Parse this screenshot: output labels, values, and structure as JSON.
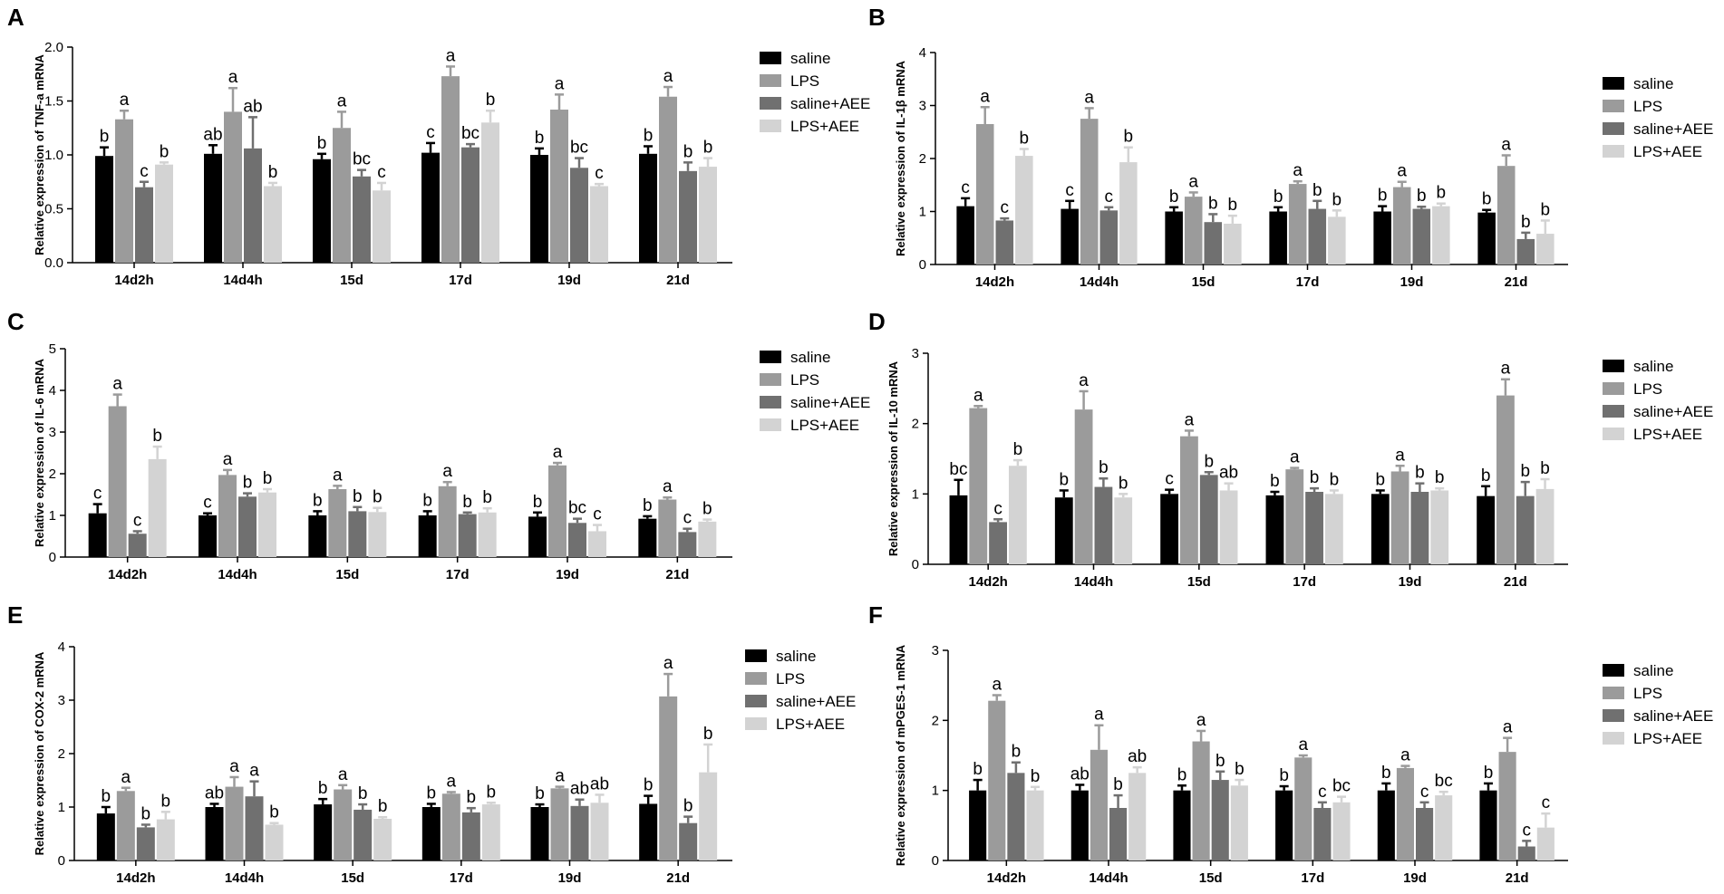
{
  "colors": {
    "saline": "#000000",
    "LPS": "#9b9b9b",
    "saline+AEE": "#707070",
    "LPS+AEE": "#d3d3d3"
  },
  "chart_data": [
    {
      "type": "bar",
      "panel": "A",
      "ylabel": "Relative expression of TNF-a mRNA",
      "ylim": [
        0,
        2.0
      ],
      "yticks": [
        "0.0",
        "0.5",
        "1.0",
        "1.5",
        "2.0"
      ],
      "categories": [
        "14d2h",
        "14d4h",
        "15d",
        "17d",
        "19d",
        "21d"
      ],
      "series": [
        {
          "name": "saline",
          "values": [
            0.99,
            1.01,
            0.96,
            1.02,
            1.0,
            1.01
          ],
          "errors": [
            0.08,
            0.08,
            0.05,
            0.09,
            0.06,
            0.07
          ],
          "sig": [
            "b",
            "ab",
            "b",
            "c",
            "b",
            "b"
          ]
        },
        {
          "name": "LPS",
          "values": [
            1.33,
            1.4,
            1.25,
            1.73,
            1.42,
            1.54
          ],
          "errors": [
            0.08,
            0.22,
            0.15,
            0.09,
            0.14,
            0.09
          ],
          "sig": [
            "a",
            "a",
            "a",
            "a",
            "a",
            "a"
          ]
        },
        {
          "name": "saline+AEE",
          "values": [
            0.7,
            1.06,
            0.8,
            1.07,
            0.88,
            0.85
          ],
          "errors": [
            0.05,
            0.29,
            0.06,
            0.03,
            0.09,
            0.08
          ],
          "sig": [
            "c",
            "ab",
            "bc",
            "bc",
            "bc",
            "b"
          ]
        },
        {
          "name": "LPS+AEE",
          "values": [
            0.91,
            0.71,
            0.67,
            1.3,
            0.71,
            0.89
          ],
          "errors": [
            0.02,
            0.03,
            0.07,
            0.11,
            0.02,
            0.08
          ],
          "sig": [
            "b",
            "b",
            "c",
            "b",
            "c",
            "b"
          ]
        }
      ]
    },
    {
      "type": "bar",
      "panel": "B",
      "ylabel": "Relative expression of IL-1β mRNA",
      "ylim": [
        0,
        4
      ],
      "yticks": [
        "0",
        "1",
        "2",
        "3",
        "4"
      ],
      "categories": [
        "14d2h",
        "14d4h",
        "15d",
        "17d",
        "19d",
        "21d"
      ],
      "series": [
        {
          "name": "saline",
          "values": [
            1.1,
            1.05,
            1.0,
            1.0,
            1.0,
            0.98
          ],
          "errors": [
            0.15,
            0.15,
            0.08,
            0.08,
            0.1,
            0.05
          ],
          "sig": [
            "c",
            "c",
            "b",
            "b",
            "b",
            "b"
          ]
        },
        {
          "name": "LPS",
          "values": [
            2.65,
            2.75,
            1.28,
            1.52,
            1.46,
            1.86
          ],
          "errors": [
            0.32,
            0.2,
            0.08,
            0.05,
            0.1,
            0.2
          ],
          "sig": [
            "a",
            "a",
            "a",
            "a",
            "a",
            "a"
          ]
        },
        {
          "name": "saline+AEE",
          "values": [
            0.83,
            1.02,
            0.8,
            1.05,
            1.05,
            0.48
          ],
          "errors": [
            0.04,
            0.06,
            0.15,
            0.15,
            0.04,
            0.12
          ],
          "sig": [
            "c",
            "c",
            "b",
            "b",
            "b",
            "b"
          ]
        },
        {
          "name": "LPS+AEE",
          "values": [
            2.05,
            1.93,
            0.77,
            0.9,
            1.1,
            0.58
          ],
          "errors": [
            0.13,
            0.28,
            0.15,
            0.12,
            0.05,
            0.25
          ],
          "sig": [
            "b",
            "b",
            "b",
            "b",
            "b",
            "b"
          ]
        }
      ]
    },
    {
      "type": "bar",
      "panel": "C",
      "ylabel": "Relative expression of IL-6 mRNA",
      "ylim": [
        0,
        5
      ],
      "yticks": [
        "0",
        "1",
        "2",
        "3",
        "4",
        "5"
      ],
      "categories": [
        "14d2h",
        "14d4h",
        "15d",
        "17d",
        "19d",
        "21d"
      ],
      "series": [
        {
          "name": "saline",
          "values": [
            1.05,
            1.0,
            1.0,
            1.0,
            0.97,
            0.92
          ],
          "errors": [
            0.22,
            0.05,
            0.1,
            0.1,
            0.1,
            0.06
          ],
          "sig": [
            "c",
            "c",
            "b",
            "b",
            "b",
            "b"
          ]
        },
        {
          "name": "LPS",
          "values": [
            3.62,
            1.97,
            1.63,
            1.7,
            2.2,
            1.38
          ],
          "errors": [
            0.28,
            0.12,
            0.08,
            0.1,
            0.06,
            0.05
          ],
          "sig": [
            "a",
            "a",
            "a",
            "a",
            "a",
            "a"
          ]
        },
        {
          "name": "saline+AEE",
          "values": [
            0.56,
            1.45,
            1.1,
            1.03,
            0.82,
            0.6
          ],
          "errors": [
            0.06,
            0.08,
            0.1,
            0.04,
            0.1,
            0.08
          ],
          "sig": [
            "c",
            "b",
            "b",
            "b",
            "bc",
            "c"
          ]
        },
        {
          "name": "LPS+AEE",
          "values": [
            2.35,
            1.55,
            1.08,
            1.07,
            0.62,
            0.85
          ],
          "errors": [
            0.3,
            0.08,
            0.1,
            0.1,
            0.15,
            0.05
          ],
          "sig": [
            "b",
            "b",
            "b",
            "b",
            "c",
            "b"
          ]
        }
      ]
    },
    {
      "type": "bar",
      "panel": "D",
      "ylabel": "Relative expression of IL-10 mRNA",
      "ylim": [
        0,
        3
      ],
      "yticks": [
        "0",
        "1",
        "2",
        "3"
      ],
      "categories": [
        "14d2h",
        "14d4h",
        "15d",
        "17d",
        "19d",
        "21d"
      ],
      "series": [
        {
          "name": "saline",
          "values": [
            0.98,
            0.95,
            1.0,
            0.98,
            1.0,
            0.97
          ],
          "errors": [
            0.22,
            0.1,
            0.06,
            0.05,
            0.05,
            0.14
          ],
          "sig": [
            "bc",
            "b",
            "c",
            "b",
            "b",
            "b"
          ]
        },
        {
          "name": "LPS",
          "values": [
            2.22,
            2.2,
            1.82,
            1.35,
            1.32,
            2.4
          ],
          "errors": [
            0.03,
            0.26,
            0.08,
            0.02,
            0.08,
            0.23
          ],
          "sig": [
            "a",
            "a",
            "a",
            "a",
            "a",
            "a"
          ]
        },
        {
          "name": "saline+AEE",
          "values": [
            0.6,
            1.1,
            1.27,
            1.03,
            1.03,
            0.97
          ],
          "errors": [
            0.04,
            0.12,
            0.04,
            0.05,
            0.12,
            0.2
          ],
          "sig": [
            "c",
            "b",
            "b",
            "b",
            "b",
            "b"
          ]
        },
        {
          "name": "LPS+AEE",
          "values": [
            1.4,
            0.95,
            1.05,
            1.0,
            1.05,
            1.07
          ],
          "errors": [
            0.08,
            0.05,
            0.1,
            0.05,
            0.03,
            0.14
          ],
          "sig": [
            "b",
            "b",
            "ab",
            "b",
            "b",
            "b"
          ]
        }
      ]
    },
    {
      "type": "bar",
      "panel": "E",
      "ylabel": "Relative expression of COX-2 mRNA",
      "ylim": [
        0,
        4
      ],
      "yticks": [
        "0",
        "1",
        "2",
        "3",
        "4"
      ],
      "categories": [
        "14d2h",
        "14d4h",
        "15d",
        "17d",
        "19d",
        "21d"
      ],
      "series": [
        {
          "name": "saline",
          "values": [
            0.88,
            1.0,
            1.05,
            1.0,
            1.0,
            1.06
          ],
          "errors": [
            0.12,
            0.06,
            0.1,
            0.06,
            0.05,
            0.15
          ],
          "sig": [
            "b",
            "ab",
            "b",
            "b",
            "b",
            "b"
          ]
        },
        {
          "name": "LPS",
          "values": [
            1.3,
            1.38,
            1.33,
            1.25,
            1.35,
            3.07
          ],
          "errors": [
            0.06,
            0.18,
            0.08,
            0.03,
            0.03,
            0.42
          ],
          "sig": [
            "a",
            "a",
            "a",
            "a",
            "a",
            "a"
          ]
        },
        {
          "name": "saline+AEE",
          "values": [
            0.62,
            1.2,
            0.95,
            0.9,
            1.02,
            0.7
          ],
          "errors": [
            0.05,
            0.28,
            0.1,
            0.08,
            0.12,
            0.12
          ],
          "sig": [
            "b",
            "a",
            "b",
            "b",
            "ab",
            "b"
          ]
        },
        {
          "name": "LPS+AEE",
          "values": [
            0.77,
            0.67,
            0.78,
            1.05,
            1.08,
            1.65
          ],
          "errors": [
            0.14,
            0.03,
            0.03,
            0.03,
            0.15,
            0.52
          ],
          "sig": [
            "b",
            "b",
            "b",
            "b",
            "ab",
            "b"
          ]
        }
      ]
    },
    {
      "type": "bar",
      "panel": "F",
      "ylabel": "Relative expression of mPGES-1 mRNA",
      "ylim": [
        0,
        3
      ],
      "yticks": [
        "0",
        "1",
        "2",
        "3"
      ],
      "categories": [
        "14d2h",
        "14d4h",
        "15d",
        "17d",
        "19d",
        "21d"
      ],
      "series": [
        {
          "name": "saline",
          "values": [
            1.0,
            1.0,
            1.0,
            1.0,
            1.0,
            1.0
          ],
          "errors": [
            0.15,
            0.08,
            0.07,
            0.06,
            0.1,
            0.1
          ],
          "sig": [
            "b",
            "ab",
            "b",
            "b",
            "b",
            "b"
          ]
        },
        {
          "name": "LPS",
          "values": [
            2.28,
            1.58,
            1.7,
            1.47,
            1.32,
            1.55
          ],
          "errors": [
            0.08,
            0.35,
            0.15,
            0.03,
            0.03,
            0.2
          ],
          "sig": [
            "a",
            "a",
            "a",
            "a",
            "a",
            "a"
          ]
        },
        {
          "name": "saline+AEE",
          "values": [
            1.25,
            0.75,
            1.15,
            0.75,
            0.75,
            0.2
          ],
          "errors": [
            0.15,
            0.18,
            0.12,
            0.08,
            0.08,
            0.08
          ],
          "sig": [
            "b",
            "b",
            "b",
            "c",
            "c",
            "c"
          ]
        },
        {
          "name": "LPS+AEE",
          "values": [
            1.0,
            1.25,
            1.07,
            0.83,
            0.93,
            0.47
          ],
          "errors": [
            0.05,
            0.08,
            0.08,
            0.08,
            0.05,
            0.2
          ],
          "sig": [
            "b",
            "ab",
            "b",
            "bc",
            "bc",
            "c"
          ]
        }
      ]
    }
  ]
}
